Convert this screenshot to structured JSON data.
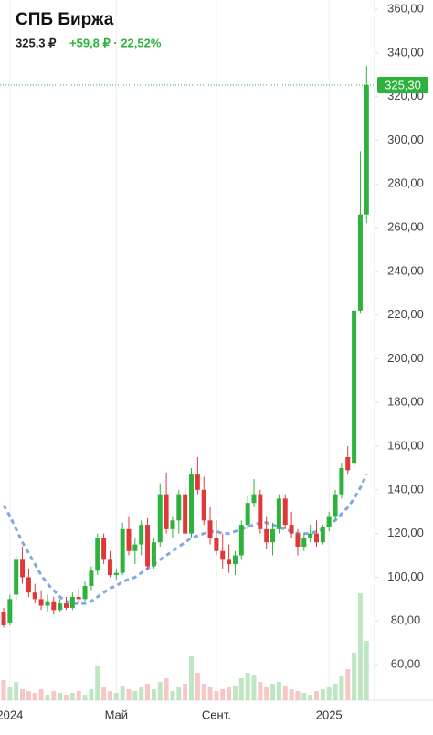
{
  "header": {
    "title": "СПБ Биржа",
    "price": "325,3 ₽",
    "change": "+59,8 ₽ · 22,52%"
  },
  "chart_data": {
    "type": "candlestick",
    "categories": [
      null,
      "2024",
      null,
      null,
      null,
      null,
      null,
      null,
      null,
      null,
      null,
      null,
      null,
      null,
      null,
      null,
      null,
      null,
      "Май",
      null,
      null,
      null,
      null,
      null,
      null,
      null,
      null,
      null,
      null,
      null,
      null,
      null,
      null,
      null,
      "Сент.",
      null,
      null,
      null,
      null,
      null,
      null,
      null,
      null,
      null,
      null,
      null,
      null,
      null,
      null,
      null,
      null,
      null,
      "2025",
      null,
      null,
      null,
      null,
      null,
      null
    ],
    "open": [
      84,
      79,
      92,
      108,
      100,
      93,
      90,
      87,
      89,
      85,
      88,
      86,
      91,
      90,
      96,
      103,
      118,
      108,
      101,
      102,
      122,
      112,
      115,
      124,
      105,
      116,
      138,
      122,
      126,
      138,
      120,
      147,
      140,
      126,
      118,
      112,
      108,
      106,
      110,
      124,
      134,
      138,
      122,
      116,
      122,
      136,
      124,
      120,
      114,
      118,
      120,
      116,
      123,
      128,
      138,
      155,
      152,
      222,
      266
    ],
    "high": [
      86,
      92,
      110,
      114,
      104,
      97,
      94,
      92,
      91,
      90,
      91,
      93,
      95,
      98,
      105,
      120,
      120,
      112,
      104,
      125,
      128,
      118,
      126,
      127,
      118,
      143,
      148,
      128,
      140,
      143,
      150,
      155,
      146,
      132,
      126,
      120,
      115,
      112,
      126,
      137,
      145,
      140,
      128,
      125,
      138,
      138,
      130,
      122,
      120,
      124,
      126,
      124,
      130,
      140,
      152,
      160,
      225,
      295,
      334
    ],
    "low": [
      77,
      78,
      90,
      97,
      91,
      88,
      85,
      84,
      83,
      84,
      85,
      85,
      88,
      89,
      94,
      101,
      106,
      100,
      99,
      101,
      110,
      106,
      110,
      103,
      104,
      114,
      120,
      118,
      120,
      118,
      118,
      138,
      124,
      115,
      110,
      104,
      102,
      101,
      108,
      122,
      132,
      120,
      113,
      110,
      120,
      122,
      118,
      110,
      112,
      116,
      114,
      115,
      121,
      126,
      136,
      147,
      150,
      221,
      262
    ],
    "close": [
      78,
      90,
      108,
      100,
      93,
      90,
      87,
      89,
      85,
      88,
      86,
      91,
      90,
      96,
      103,
      118,
      108,
      101,
      102,
      122,
      112,
      115,
      124,
      105,
      116,
      138,
      122,
      126,
      138,
      120,
      147,
      140,
      126,
      118,
      112,
      108,
      106,
      110,
      124,
      134,
      138,
      122,
      116,
      122,
      136,
      124,
      120,
      114,
      118,
      120,
      116,
      123,
      128,
      138,
      150,
      149,
      222,
      266,
      325.3
    ],
    "volume": [
      22,
      14,
      20,
      12,
      10,
      8,
      12,
      6,
      10,
      8,
      6,
      8,
      10,
      6,
      12,
      38,
      14,
      10,
      8,
      16,
      12,
      10,
      14,
      18,
      12,
      20,
      24,
      10,
      14,
      18,
      48,
      30,
      18,
      14,
      10,
      12,
      14,
      16,
      24,
      30,
      28,
      20,
      14,
      18,
      20,
      16,
      12,
      10,
      8,
      6,
      10,
      12,
      14,
      18,
      26,
      34,
      52,
      117,
      65
    ],
    "moving_average": {
      "color": "#7ea9e3",
      "values": [
        133,
        128,
        122,
        116,
        111,
        106,
        101,
        97,
        94,
        91,
        89,
        88,
        88,
        88,
        89,
        91,
        93,
        95,
        96,
        98,
        99,
        100,
        102,
        104,
        106,
        108,
        110,
        112,
        114,
        116,
        118,
        119,
        120,
        121,
        121,
        120,
        120,
        121,
        122,
        123,
        124,
        125,
        125,
        124,
        123,
        122,
        121,
        120,
        120,
        120,
        121,
        122,
        124,
        126,
        129,
        132,
        136,
        141,
        147
      ]
    },
    "up_color": "#2db33d",
    "down_color": "#e0383a",
    "volume_up_color": "#bfe6c2",
    "volume_down_color": "#f7c6c6",
    "ylim": [
      43.7,
      364.2
    ],
    "yticks": [
      {
        "value": 60,
        "label": "60,00"
      },
      {
        "value": 80,
        "label": "80,00"
      },
      {
        "value": 100,
        "label": "100,00"
      },
      {
        "value": 120,
        "label": "120,00"
      },
      {
        "value": 140,
        "label": "140,00"
      },
      {
        "value": 160,
        "label": "160,00"
      },
      {
        "value": 180,
        "label": "180,00"
      },
      {
        "value": 200,
        "label": "200,00"
      },
      {
        "value": 220,
        "label": "220,00"
      },
      {
        "value": 240,
        "label": "240,00"
      },
      {
        "value": 260,
        "label": "260,00"
      },
      {
        "value": 280,
        "label": "280,00"
      },
      {
        "value": 300,
        "label": "300,00"
      },
      {
        "value": 320,
        "label": "320,00"
      },
      {
        "value": 340,
        "label": "340,00"
      },
      {
        "value": 360,
        "label": "360,00"
      }
    ],
    "last_price": {
      "value": 325.3,
      "label": "325,30"
    },
    "grid": "x"
  }
}
